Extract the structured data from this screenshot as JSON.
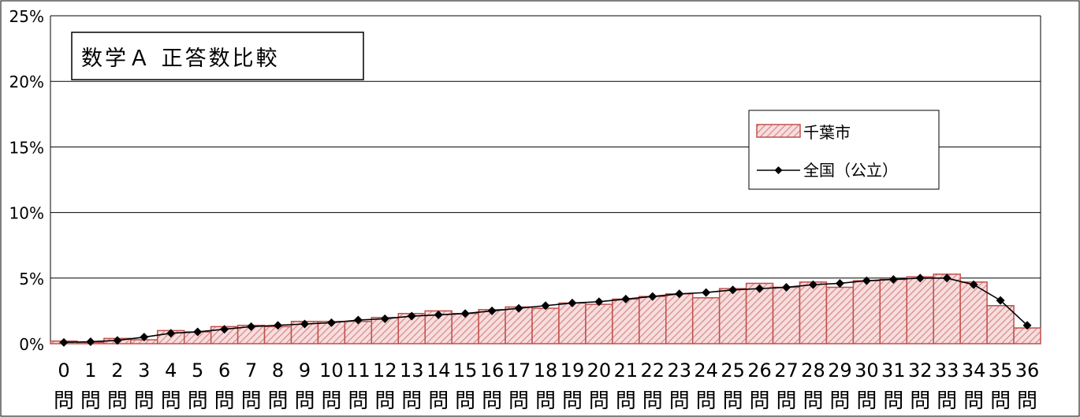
{
  "colors": {
    "bar_fill": "#f4c8c8",
    "bar_hatch": "#d27878",
    "bar_stroke": "#c0504d",
    "line": "#000000",
    "grid": "#000000"
  },
  "chart_data": {
    "type": "bar",
    "title": "数学Ａ 正答数比較",
    "xlabel": "",
    "ylabel": "",
    "ylim": [
      0,
      25
    ],
    "yticks": [
      "0%",
      "5%",
      "10%",
      "15%",
      "20%",
      "25%"
    ],
    "ytick_values": [
      0,
      5,
      10,
      15,
      20,
      25
    ],
    "grid": "horizontal",
    "legend_position": "top-right",
    "categories": [
      "0",
      "1",
      "2",
      "3",
      "4",
      "5",
      "6",
      "7",
      "8",
      "9",
      "10",
      "11",
      "12",
      "13",
      "14",
      "15",
      "16",
      "17",
      "18",
      "19",
      "20",
      "21",
      "22",
      "23",
      "24",
      "25",
      "26",
      "27",
      "28",
      "29",
      "30",
      "31",
      "32",
      "33",
      "34",
      "35",
      "36"
    ],
    "category_suffix": "問",
    "series": [
      {
        "name": "千葉市",
        "kind": "bar",
        "values": [
          0.2,
          0.1,
          0.4,
          0.3,
          1.0,
          0.9,
          1.3,
          1.4,
          1.3,
          1.7,
          1.7,
          1.7,
          2.0,
          2.3,
          2.5,
          2.3,
          2.6,
          2.8,
          2.7,
          3.1,
          3.0,
          3.4,
          3.6,
          3.8,
          3.5,
          4.2,
          4.6,
          4.3,
          4.7,
          4.3,
          4.8,
          4.9,
          5.1,
          5.3,
          4.7,
          2.9,
          1.2
        ]
      },
      {
        "name": "全国（公立）",
        "kind": "line",
        "values": [
          0.1,
          0.15,
          0.25,
          0.5,
          0.8,
          0.9,
          1.1,
          1.3,
          1.4,
          1.5,
          1.6,
          1.8,
          1.9,
          2.1,
          2.2,
          2.3,
          2.5,
          2.7,
          2.9,
          3.1,
          3.2,
          3.4,
          3.6,
          3.8,
          3.9,
          4.1,
          4.2,
          4.3,
          4.5,
          4.6,
          4.8,
          4.9,
          5.0,
          5.0,
          4.5,
          3.3,
          1.4
        ]
      }
    ]
  }
}
